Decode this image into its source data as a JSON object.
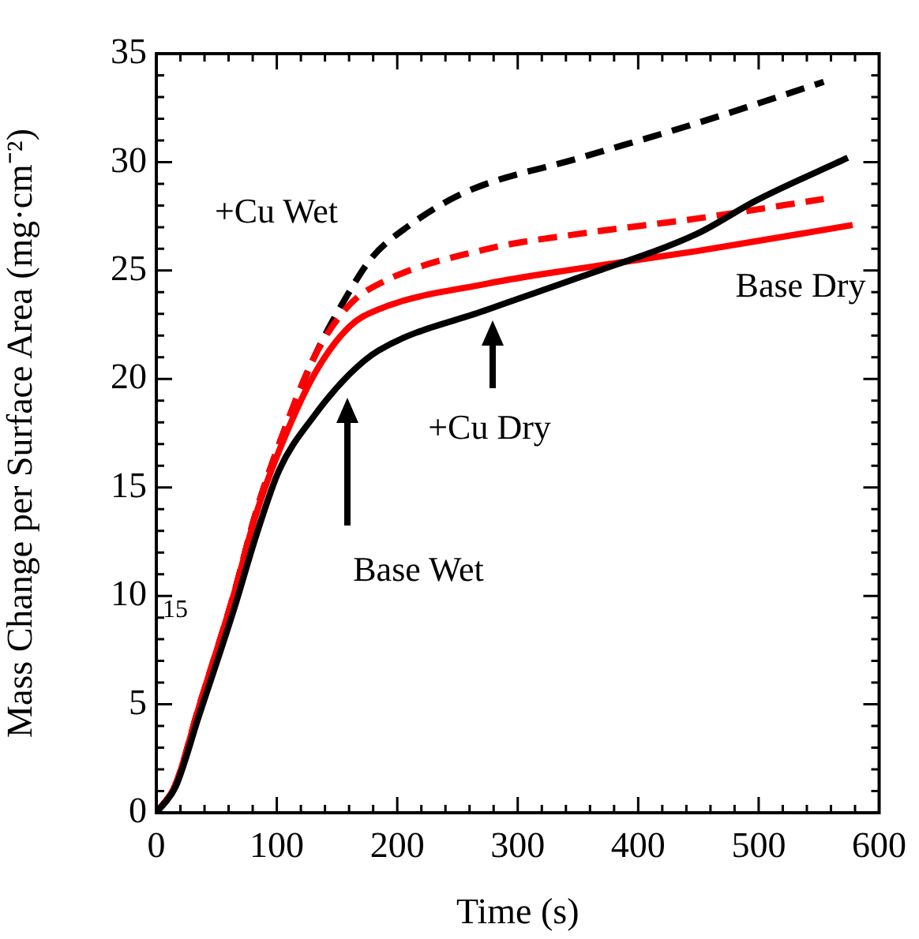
{
  "chart_data": {
    "type": "line",
    "xlabel": "Time (s)",
    "ylabel": "Mass Change per Surface Area (mg·cm⁻²)",
    "xlim": [
      0,
      600
    ],
    "ylim": [
      0,
      35
    ],
    "xticks": [
      0,
      {
        "value": 20,
        "label": null
      },
      {
        "value": 40,
        "label": null
      },
      {
        "value": 60,
        "label": null
      },
      {
        "value": 80,
        "label": null
      },
      100,
      {
        "value": 120,
        "label": null
      },
      {
        "value": 140,
        "label": null
      },
      {
        "value": 160,
        "label": null
      },
      {
        "value": 180,
        "label": null
      },
      200,
      {
        "value": 220,
        "label": null
      },
      {
        "value": 240,
        "label": null
      },
      {
        "value": 260,
        "label": null
      },
      {
        "value": 280,
        "label": null
      },
      300,
      {
        "value": 320,
        "label": null
      },
      {
        "value": 340,
        "label": null
      },
      {
        "value": 360,
        "label": null
      },
      {
        "value": 380,
        "label": null
      },
      400,
      {
        "value": 420,
        "label": null
      },
      {
        "value": 440,
        "label": null
      },
      {
        "value": 460,
        "label": null
      },
      {
        "value": 480,
        "label": null
      },
      500,
      {
        "value": 520,
        "label": null
      },
      {
        "value": 540,
        "label": null
      },
      {
        "value": 560,
        "label": null
      },
      {
        "value": 580,
        "label": null
      },
      600
    ],
    "yticks": [
      0,
      {
        "value": 1,
        "label": null
      },
      {
        "value": 2,
        "label": null
      },
      {
        "value": 3,
        "label": null
      },
      {
        "value": 4,
        "label": null
      },
      5,
      {
        "value": 6,
        "label": null
      },
      {
        "value": 7,
        "label": null
      },
      {
        "value": 8,
        "label": null
      },
      {
        "value": 9,
        "label": null
      },
      10,
      {
        "value": 11,
        "label": null
      },
      {
        "value": 12,
        "label": null
      },
      {
        "value": 13,
        "label": null
      },
      {
        "value": 14,
        "label": null
      },
      15,
      {
        "value": 16,
        "label": null
      },
      {
        "value": 17,
        "label": null
      },
      {
        "value": 18,
        "label": null
      },
      {
        "value": 19,
        "label": null
      },
      20,
      {
        "value": 21,
        "label": null
      },
      {
        "value": 22,
        "label": null
      },
      {
        "value": 23,
        "label": null
      },
      {
        "value": 24,
        "label": null
      },
      25,
      {
        "value": 26,
        "label": null
      },
      {
        "value": 27,
        "label": null
      },
      {
        "value": 28,
        "label": null
      },
      {
        "value": 29,
        "label": null
      },
      30,
      {
        "value": 31,
        "label": null
      },
      {
        "value": 32,
        "label": null
      },
      {
        "value": 33,
        "label": null
      },
      {
        "value": 34,
        "label": null
      },
      35
    ],
    "grid": false,
    "legend": false,
    "marker": "none",
    "series": [
      {
        "color": "#000000",
        "line_style": "solid",
        "x": [
          0,
          16,
          35,
          64,
          83,
          102,
          131,
          160,
          184,
          275,
          352,
          449,
          497,
          574
        ],
        "values": [
          0,
          1.2,
          4.4,
          9.3,
          12.8,
          15.8,
          18.3,
          20.2,
          21.3,
          23.2,
          24.7,
          26.7,
          28.2,
          30.2
        ]
      },
      {
        "color": "#ff0000",
        "line_style": "solid",
        "x": [
          0,
          16,
          35,
          64,
          83,
          102,
          131,
          160,
          184,
          275,
          352,
          449,
          578
        ],
        "values": [
          0,
          1.3,
          4.8,
          10,
          13.8,
          16.7,
          20.2,
          22.4,
          23.2,
          24.4,
          25.1,
          25.9,
          27.1
        ]
      },
      {
        "color": "#ff0000",
        "line_style": "dashed",
        "x": [
          0,
          16,
          35,
          64,
          83,
          102,
          131,
          160,
          189,
          275,
          352,
          449,
          554
        ],
        "values": [
          0,
          1.3,
          4.8,
          10,
          13.9,
          17,
          21,
          23.4,
          24.5,
          26,
          26.7,
          27.4,
          28.3
        ]
      },
      {
        "color": "#000000",
        "line_style": "dashed",
        "x": [
          0,
          16,
          35,
          64,
          83,
          102,
          131,
          160,
          179,
          208,
          256,
          352,
          449,
          554
        ],
        "values": [
          0,
          1.3,
          4.8,
          10,
          13.9,
          17,
          21,
          24,
          25.6,
          27,
          28.6,
          30.2,
          31.8,
          33.7
        ]
      }
    ],
    "annotations": [
      "+Cu Wet",
      "+Cu Dry",
      "Base Dry",
      "Base Wet",
      "15"
    ]
  }
}
